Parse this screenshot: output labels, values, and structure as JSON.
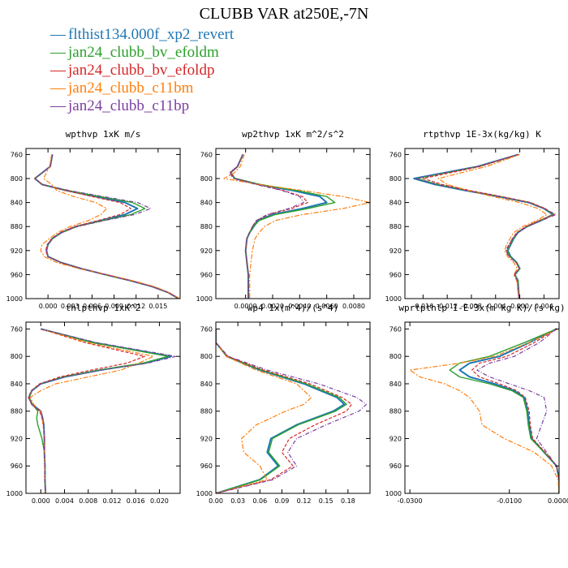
{
  "title": "CLUBB VAR at250E,-7N",
  "legend": [
    {
      "label": "flthist134.000f_xp2_revert",
      "color": "#1f77b4"
    },
    {
      "label": "jan24_clubb_bv_efoldm",
      "color": "#2ca02c"
    },
    {
      "label": "jan24_clubb_bv_efoldp",
      "color": "#d62728"
    },
    {
      "label": "jan24_clubb_c11bm",
      "color": "#ff7f0e"
    },
    {
      "label": "jan24_clubb_c11bp",
      "color": "#7b3fa0"
    }
  ],
  "chart_data": [
    {
      "type": "line",
      "title": "wpthvp   1xK m/s",
      "xlim": [
        -0.003,
        0.018
      ],
      "xticks": [
        "0.000",
        "0.003",
        "0.006",
        "0.009",
        "0.012",
        "0.015"
      ],
      "xtick_values": [
        0,
        0.003,
        0.006,
        0.009,
        0.012,
        0.015
      ],
      "ylim": [
        1000,
        750
      ],
      "yticks": [
        760,
        800,
        840,
        880,
        920,
        960,
        1000
      ],
      "y": [
        760,
        780,
        800,
        810,
        820,
        830,
        840,
        850,
        860,
        870,
        880,
        890,
        900,
        910,
        920,
        930,
        940,
        950,
        960,
        970,
        980,
        990,
        1000
      ],
      "series": [
        {
          "name": "flthist134.000f_xp2_revert",
          "values": [
            0.0006,
            0.0003,
            -0.0018,
            -0.0008,
            0.0025,
            0.0065,
            0.0105,
            0.0122,
            0.0105,
            0.0072,
            0.0038,
            0.0018,
            0.0006,
            0.0,
            -0.0002,
            0.0,
            0.0018,
            0.0045,
            0.0078,
            0.0112,
            0.0142,
            0.0164,
            0.0178
          ]
        },
        {
          "name": "jan24_clubb_bv_efoldm",
          "values": [
            0.0006,
            0.0003,
            -0.0018,
            -0.0008,
            0.0027,
            0.007,
            0.0115,
            0.0132,
            0.0113,
            0.0075,
            0.0039,
            0.0019,
            0.0006,
            0.0,
            -0.0002,
            0.0,
            0.0018,
            0.0045,
            0.0078,
            0.0112,
            0.0142,
            0.0164,
            0.0178
          ]
        },
        {
          "name": "jan24_clubb_bv_efoldp",
          "values": [
            0.0006,
            0.0003,
            -0.0018,
            -0.0008,
            0.0024,
            0.006,
            0.0098,
            0.0113,
            0.0098,
            0.0068,
            0.0036,
            0.0017,
            0.0005,
            -0.0001,
            -0.0003,
            0.0,
            0.0018,
            0.0045,
            0.0078,
            0.0112,
            0.0142,
            0.0164,
            0.0178
          ]
        },
        {
          "name": "jan24_clubb_c11bm",
          "values": [
            0.0005,
            0.0002,
            -0.0006,
            0.0005,
            0.0012,
            0.0035,
            0.0065,
            0.008,
            0.0072,
            0.0055,
            0.003,
            0.0013,
            0.0002,
            -0.0008,
            -0.001,
            -0.0005,
            0.0012,
            0.0042,
            0.008,
            0.0115,
            0.0145,
            0.0165,
            0.018
          ]
        },
        {
          "name": "jan24_clubb_c11bp",
          "values": [
            0.0006,
            0.0003,
            -0.0018,
            -0.0008,
            0.0029,
            0.0075,
            0.0122,
            0.014,
            0.0118,
            0.0077,
            0.004,
            0.0019,
            0.0006,
            0.0,
            -0.0002,
            0.0,
            0.0018,
            0.0045,
            0.0078,
            0.0112,
            0.0142,
            0.0164,
            0.0178
          ]
        }
      ]
    },
    {
      "type": "line",
      "title": "wp2thvp  1xK m^2/s^2",
      "xlim": [
        -0.0022,
        0.0092
      ],
      "xticks": [
        "0.0000",
        "0.0020",
        "0.0040",
        "0.0060",
        "0.0080"
      ],
      "xtick_values": [
        0,
        0.002,
        0.004,
        0.006,
        0.008
      ],
      "ylim": [
        1000,
        750
      ],
      "yticks": [
        760,
        800,
        840,
        880,
        920,
        960,
        1000
      ],
      "y": [
        760,
        780,
        790,
        800,
        810,
        820,
        830,
        840,
        850,
        860,
        870,
        880,
        890,
        900,
        920,
        940,
        960,
        980,
        1000
      ],
      "series": [
        {
          "name": "flthist134.000f_xp2_revert",
          "values": [
            -0.0002,
            -0.0006,
            -0.0011,
            -0.0008,
            0.001,
            0.0035,
            0.0055,
            0.006,
            0.0042,
            0.002,
            0.0009,
            0.0006,
            0.0003,
            0.0001,
            0.0,
            0.0001,
            0.0002,
            0.0002,
            0.0002
          ]
        },
        {
          "name": "jan24_clubb_bv_efoldm",
          "values": [
            -0.0002,
            -0.0006,
            -0.0011,
            -0.0008,
            0.0011,
            0.0038,
            0.006,
            0.0066,
            0.0046,
            0.0022,
            0.001,
            0.0006,
            0.0003,
            0.0001,
            0.0,
            0.0001,
            0.0002,
            0.0002,
            0.0002
          ]
        },
        {
          "name": "jan24_clubb_bv_efoldp",
          "values": [
            -0.0002,
            -0.0006,
            -0.0011,
            -0.0008,
            0.0009,
            0.0028,
            0.0042,
            0.0046,
            0.0034,
            0.0017,
            0.0008,
            0.0005,
            0.0003,
            0.0001,
            0.0,
            0.0001,
            0.0002,
            0.0002,
            0.0002
          ]
        },
        {
          "name": "jan24_clubb_c11bm",
          "values": [
            -0.0001,
            -0.0004,
            -0.0008,
            -0.0016,
            0.001,
            0.0042,
            0.0072,
            0.0092,
            0.0072,
            0.0042,
            0.0022,
            0.0014,
            0.001,
            0.0007,
            0.0005,
            0.0004,
            0.0003,
            0.0003,
            0.0003
          ]
        },
        {
          "name": "jan24_clubb_c11bp",
          "values": [
            -0.0002,
            -0.0006,
            -0.0012,
            -0.0009,
            0.0008,
            0.0027,
            0.004,
            0.0043,
            0.0032,
            0.0016,
            0.0008,
            0.0005,
            0.0003,
            0.0001,
            0.0,
            0.0001,
            0.0002,
            0.0002,
            0.0002
          ]
        }
      ]
    },
    {
      "type": "line",
      "title": "rtpthvp  1E-3x(kg/kg) K",
      "xlim": [
        -0.019,
        0.0065
      ],
      "xticks": [
        "-0.016",
        "-0.012",
        "-0.008",
        "-0.004",
        "0.000",
        "0.004"
      ],
      "xtick_values": [
        -0.016,
        -0.012,
        -0.008,
        -0.004,
        0,
        0.004
      ],
      "ylim": [
        1000,
        750
      ],
      "yticks": [
        760,
        800,
        840,
        880,
        920,
        960,
        1000
      ],
      "y": [
        760,
        780,
        800,
        810,
        820,
        830,
        840,
        850,
        860,
        870,
        880,
        890,
        900,
        910,
        920,
        930,
        940,
        950,
        960,
        970,
        1000
      ],
      "series": [
        {
          "name": "flthist134.000f_xp2_revert",
          "values": [
            -0.0002,
            -0.007,
            -0.0175,
            -0.014,
            -0.009,
            -0.0035,
            0.0015,
            0.004,
            0.0055,
            0.0035,
            0.0012,
            -0.0003,
            -0.001,
            -0.0015,
            -0.002,
            -0.0015,
            -0.0005,
            0.0,
            -0.0008,
            -0.0003,
            -0.0001
          ]
        },
        {
          "name": "jan24_clubb_bv_efoldm",
          "values": [
            -0.0002,
            -0.0068,
            -0.017,
            -0.0135,
            -0.0087,
            -0.0033,
            0.0016,
            0.0041,
            0.0056,
            0.0034,
            0.0011,
            -0.0004,
            -0.0011,
            -0.0016,
            -0.0021,
            -0.0016,
            -0.0005,
            0.0,
            -0.0008,
            -0.0003,
            -0.0001
          ]
        },
        {
          "name": "jan24_clubb_bv_efoldp",
          "values": [
            -0.0003,
            -0.0065,
            -0.016,
            -0.0128,
            -0.0082,
            -0.003,
            0.0018,
            0.0042,
            0.0057,
            0.0032,
            0.001,
            -0.0005,
            -0.0012,
            -0.0017,
            -0.0022,
            -0.0017,
            -0.0006,
            -0.0001,
            -0.0009,
            -0.0004,
            -0.0001
          ]
        },
        {
          "name": "jan24_clubb_c11bm",
          "values": [
            0.0,
            -0.0055,
            -0.0135,
            -0.012,
            -0.0085,
            -0.0045,
            0.0,
            0.003,
            0.0045,
            0.0028,
            0.0005,
            -0.001,
            -0.0016,
            -0.0022,
            -0.0025,
            -0.002,
            -0.001,
            -0.0004,
            -0.001,
            -0.0005,
            -0.0002
          ]
        },
        {
          "name": "jan24_clubb_c11bp",
          "values": [
            -0.0003,
            -0.007,
            -0.0172,
            -0.0137,
            -0.0089,
            -0.0034,
            0.0015,
            0.004,
            0.006,
            0.0036,
            0.0012,
            -0.0003,
            -0.0012,
            -0.0018,
            -0.0023,
            -0.0018,
            -0.0006,
            -0.0001,
            -0.0009,
            -0.0004,
            -0.0001
          ]
        }
      ]
    },
    {
      "type": "line",
      "title": "thlpthvp  1xK^2",
      "xlim": [
        -0.0025,
        0.0235
      ],
      "xticks": [
        "0.000",
        "0.004",
        "0.008",
        "0.012",
        "0.016",
        "0.020"
      ],
      "xtick_values": [
        0,
        0.004,
        0.008,
        0.012,
        0.016,
        0.02
      ],
      "ylim": [
        1000,
        750
      ],
      "yticks": [
        760,
        800,
        840,
        880,
        920,
        960,
        1000
      ],
      "y": [
        760,
        780,
        800,
        810,
        820,
        830,
        840,
        850,
        860,
        870,
        880,
        890,
        900,
        920,
        940,
        960,
        980,
        1000
      ],
      "series": [
        {
          "name": "flthist134.000f_xp2_revert",
          "values": [
            0.0,
            0.009,
            0.022,
            0.0175,
            0.01,
            0.004,
            0.0,
            -0.0015,
            -0.002,
            -0.0015,
            0.0,
            0.0003,
            0.0005,
            0.0006,
            0.0006,
            0.0007,
            0.0007,
            0.0008
          ]
        },
        {
          "name": "jan24_clubb_bv_efoldm",
          "values": [
            0.0,
            0.0088,
            0.0215,
            0.0172,
            0.0098,
            0.0038,
            -0.0001,
            -0.0015,
            -0.002,
            -0.0014,
            -0.0005,
            -0.0007,
            -0.0005,
            0.0002,
            0.0006,
            0.0007,
            0.0007,
            0.0008
          ]
        },
        {
          "name": "jan24_clubb_bv_efoldp",
          "values": [
            0.0,
            0.0075,
            0.0175,
            0.0145,
            0.0085,
            0.0032,
            -0.0002,
            -0.0016,
            -0.0021,
            -0.0015,
            -0.0002,
            0.0002,
            0.0004,
            0.0006,
            0.0006,
            0.0007,
            0.0007,
            0.0008
          ]
        },
        {
          "name": "jan24_clubb_c11bm",
          "values": [
            0.0,
            0.008,
            0.019,
            0.0165,
            0.0135,
            0.008,
            0.0025,
            0.0,
            -0.0018,
            -0.0012,
            0.0,
            0.0002,
            0.0004,
            0.0006,
            0.0006,
            0.0007,
            0.0007,
            0.0008
          ]
        },
        {
          "name": "jan24_clubb_c11bp",
          "values": [
            0.0,
            0.0095,
            0.0228,
            0.018,
            0.0102,
            0.0041,
            0.0,
            -0.0015,
            -0.002,
            -0.0015,
            0.0,
            0.0003,
            0.0005,
            0.0006,
            0.0006,
            0.0007,
            0.0007,
            0.0008
          ]
        }
      ]
    },
    {
      "type": "line",
      "title": "wp4  1x(m^4)/(s^4)",
      "xlim": [
        0.0,
        0.21
      ],
      "xticks": [
        "0.00",
        "0.03",
        "0.06",
        "0.09",
        "0.12",
        "0.15",
        "0.18"
      ],
      "xtick_values": [
        0,
        0.03,
        0.06,
        0.09,
        0.12,
        0.15,
        0.18
      ],
      "ylim": [
        1000,
        750
      ],
      "yticks": [
        760,
        800,
        840,
        880,
        920,
        960,
        1000
      ],
      "y": [
        760,
        780,
        800,
        820,
        840,
        860,
        870,
        880,
        900,
        920,
        940,
        960,
        980,
        1000
      ],
      "series": [
        {
          "name": "flthist134.000f_xp2_revert",
          "values": [
            0.0,
            0.0,
            0.015,
            0.06,
            0.12,
            0.165,
            0.175,
            0.16,
            0.11,
            0.075,
            0.07,
            0.085,
            0.06,
            0.0
          ]
        },
        {
          "name": "jan24_clubb_bv_efoldm",
          "values": [
            0.0,
            0.0,
            0.015,
            0.062,
            0.123,
            0.168,
            0.178,
            0.163,
            0.112,
            0.077,
            0.072,
            0.087,
            0.061,
            0.0
          ]
        },
        {
          "name": "jan24_clubb_bv_efoldp",
          "values": [
            0.0,
            0.0,
            0.016,
            0.065,
            0.128,
            0.172,
            0.185,
            0.178,
            0.135,
            0.1,
            0.09,
            0.105,
            0.075,
            0.0
          ]
        },
        {
          "name": "jan24_clubb_c11bm",
          "values": [
            0.0,
            0.0,
            0.014,
            0.055,
            0.11,
            0.13,
            0.12,
            0.095,
            0.055,
            0.035,
            0.038,
            0.06,
            0.07,
            0.0
          ]
        },
        {
          "name": "jan24_clubb_c11bp",
          "values": [
            0.0,
            0.0,
            0.017,
            0.07,
            0.14,
            0.192,
            0.205,
            0.195,
            0.15,
            0.11,
            0.098,
            0.11,
            0.078,
            0.0
          ]
        }
      ]
    },
    {
      "type": "line",
      "title": "wprtpthlp  1-E-3x(m kg K)/(s kg)",
      "xlim": [
        -0.031,
        0.0
      ],
      "xticks": [
        "-0.0300",
        "-0.0100",
        "0.0000"
      ],
      "xtick_values": [
        -0.03,
        -0.01,
        0
      ],
      "ylim": [
        1000,
        750
      ],
      "yticks": [
        760,
        800,
        840,
        880,
        920,
        960,
        1000
      ],
      "y": [
        760,
        780,
        800,
        810,
        820,
        830,
        840,
        850,
        860,
        880,
        900,
        920,
        940,
        960,
        980,
        1000
      ],
      "series": [
        {
          "name": "flthist134.000f_xp2_revert",
          "values": [
            -0.0005,
            -0.006,
            -0.012,
            -0.018,
            -0.02,
            -0.018,
            -0.013,
            -0.009,
            -0.007,
            -0.0063,
            -0.006,
            -0.0055,
            -0.003,
            -0.0005,
            0.0,
            0.0
          ]
        },
        {
          "name": "jan24_clubb_bv_efoldm",
          "values": [
            -0.0005,
            -0.007,
            -0.014,
            -0.02,
            -0.022,
            -0.02,
            -0.014,
            -0.0095,
            -0.0072,
            -0.0065,
            -0.0062,
            -0.0057,
            -0.003,
            -0.0005,
            0.0,
            0.0
          ]
        },
        {
          "name": "jan24_clubb_bv_efoldp",
          "values": [
            -0.0005,
            -0.005,
            -0.0105,
            -0.016,
            -0.0175,
            -0.016,
            -0.012,
            -0.0085,
            -0.0068,
            -0.006,
            -0.0058,
            -0.0053,
            -0.0028,
            -0.0005,
            0.0,
            0.0
          ]
        },
        {
          "name": "jan24_clubb_c11bm",
          "values": [
            -0.0003,
            -0.006,
            -0.013,
            -0.02,
            -0.03,
            -0.028,
            -0.023,
            -0.02,
            -0.018,
            -0.016,
            -0.0155,
            -0.011,
            -0.005,
            -0.0015,
            -0.0002,
            0.0
          ]
        },
        {
          "name": "jan24_clubb_c11bp",
          "values": [
            -0.0005,
            -0.004,
            -0.009,
            -0.014,
            -0.0165,
            -0.014,
            -0.01,
            -0.006,
            -0.003,
            -0.0025,
            -0.0035,
            -0.0045,
            -0.0025,
            -0.0005,
            0.0,
            0.0
          ]
        }
      ]
    }
  ]
}
